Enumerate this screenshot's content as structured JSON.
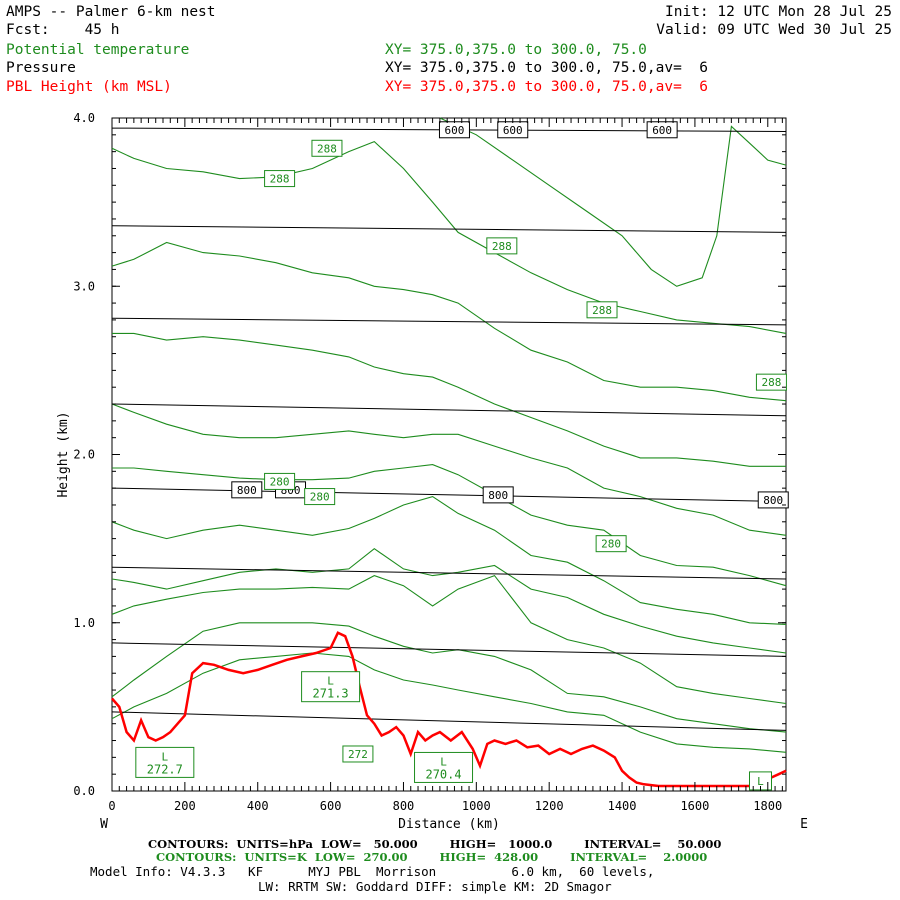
{
  "header": {
    "title": "AMPS -- Palmer 6-km nest",
    "fcst": "Fcst:    45 h",
    "init": "Init: 12 UTC Mon 28 Jul 25",
    "valid": "Valid: 09 UTC Wed 30 Jul 25",
    "fields": [
      {
        "name": "Potential temperature",
        "xy": "XY= 375.0,375.0 to 300.0, 75.0",
        "color": "#1e8c1e"
      },
      {
        "name": "Pressure",
        "xy": "XY= 375.0,375.0 to 300.0, 75.0,av=  6",
        "color": "#000000"
      },
      {
        "name": "PBL Height (km MSL)",
        "xy": "XY= 375.0,375.0 to 300.0, 75.0,av=  6",
        "color": "#ff0000"
      }
    ]
  },
  "footer": {
    "pressure_contours": "CONTOURS:  UNITS=hPa  LOW=   50.000        HIGH=   1000.0        INTERVAL=    50.000",
    "theta_contours": "CONTOURS:  UNITS=K  LOW=  270.00        HIGH=  428.00        INTERVAL=    2.0000",
    "model_info": "Model Info: V4.3.3   KF      MYJ PBL  Morrison          6.0 km,  60 levels,",
    "model_info2": "LW: RRTM SW: Goddard DIFF: simple KM: 2D Smagor"
  },
  "chart_data": {
    "type": "line",
    "xlabel": "Distance (km)",
    "ylabel": "Height (km)",
    "xlim": [
      0,
      1850
    ],
    "ylim": [
      0,
      4.0
    ],
    "x_ticks": [
      0,
      200,
      400,
      600,
      800,
      1000,
      1200,
      1400,
      1600,
      1800
    ],
    "y_ticks": [
      0.0,
      1.0,
      2.0,
      3.0,
      4.0
    ],
    "y_tick_labels": [
      "0.0",
      "1.0",
      "2.0",
      "3.0",
      "4.0"
    ],
    "left_end_label": "W",
    "right_end_label": "E",
    "pressure_isobars": [
      {
        "level": "950",
        "x": [
          0,
          1850
        ],
        "y": [
          0.47,
          0.36
        ]
      },
      {
        "level": "900",
        "x": [
          0,
          1850
        ],
        "y": [
          0.88,
          0.8
        ]
      },
      {
        "level": "850",
        "x": [
          0,
          1850
        ],
        "y": [
          1.33,
          1.26
        ]
      },
      {
        "level": "800",
        "x": [
          0,
          1850
        ],
        "y": [
          1.8,
          1.72
        ]
      },
      {
        "level": "750",
        "x": [
          0,
          1850
        ],
        "y": [
          2.3,
          2.23
        ]
      },
      {
        "level": "700",
        "x": [
          0,
          1850
        ],
        "y": [
          2.81,
          2.77
        ]
      },
      {
        "level": "650",
        "x": [
          0,
          1850
        ],
        "y": [
          3.36,
          3.32
        ]
      },
      {
        "level": "600",
        "x": [
          0,
          1850
        ],
        "y": [
          3.94,
          3.92
        ]
      }
    ],
    "pressure_labels": [
      {
        "text": "600",
        "x": 940,
        "y": 3.93
      },
      {
        "text": "600",
        "x": 1100,
        "y": 3.93
      },
      {
        "text": "600",
        "x": 1510,
        "y": 3.93
      },
      {
        "text": "800",
        "x": 370,
        "y": 1.79
      },
      {
        "text": "800",
        "x": 490,
        "y": 1.79
      },
      {
        "text": "800",
        "x": 1060,
        "y": 1.76
      },
      {
        "text": "800",
        "x": 1815,
        "y": 1.73
      }
    ],
    "theta_isentropes": [
      {
        "x": [
          0,
          60,
          150,
          250,
          350,
          450,
          550,
          650,
          720,
          800,
          880,
          950,
          1050,
          1150,
          1250,
          1350,
          1450,
          1550,
          1650,
          1750,
          1850
        ],
        "y": [
          0.43,
          0.5,
          0.58,
          0.7,
          0.78,
          0.8,
          0.82,
          0.8,
          0.72,
          0.66,
          0.63,
          0.6,
          0.56,
          0.52,
          0.47,
          0.45,
          0.35,
          0.28,
          0.26,
          0.25,
          0.23
        ]
      },
      {
        "x": [
          0,
          60,
          150,
          250,
          350,
          450,
          550,
          650,
          720,
          800,
          880,
          950,
          1050,
          1150,
          1250,
          1350,
          1450,
          1550,
          1650,
          1750,
          1850
        ],
        "y": [
          0.56,
          0.66,
          0.8,
          0.95,
          1.0,
          1.0,
          1.0,
          0.98,
          0.92,
          0.86,
          0.82,
          0.84,
          0.8,
          0.72,
          0.58,
          0.56,
          0.5,
          0.43,
          0.4,
          0.37,
          0.35
        ]
      },
      {
        "x": [
          0,
          60,
          150,
          250,
          350,
          450,
          550,
          650,
          720,
          800,
          880,
          950,
          1050,
          1150,
          1250,
          1350,
          1450,
          1550,
          1650,
          1750,
          1850
        ],
        "y": [
          1.05,
          1.1,
          1.14,
          1.18,
          1.2,
          1.2,
          1.21,
          1.2,
          1.28,
          1.22,
          1.1,
          1.2,
          1.28,
          1.0,
          0.9,
          0.85,
          0.76,
          0.62,
          0.58,
          0.55,
          0.52
        ]
      },
      {
        "x": [
          0,
          60,
          150,
          250,
          350,
          450,
          550,
          650,
          720,
          800,
          880,
          950,
          1050,
          1150,
          1250,
          1350,
          1450,
          1550,
          1650,
          1750,
          1850
        ],
        "y": [
          1.26,
          1.24,
          1.2,
          1.25,
          1.3,
          1.32,
          1.3,
          1.32,
          1.44,
          1.32,
          1.28,
          1.3,
          1.34,
          1.2,
          1.15,
          1.05,
          0.98,
          0.92,
          0.88,
          0.85,
          0.82
        ]
      },
      {
        "x": [
          0,
          60,
          150,
          250,
          350,
          450,
          550,
          650,
          720,
          800,
          880,
          950,
          1050,
          1150,
          1250,
          1350,
          1450,
          1550,
          1650,
          1750,
          1850
        ],
        "y": [
          1.6,
          1.55,
          1.5,
          1.55,
          1.58,
          1.55,
          1.52,
          1.56,
          1.62,
          1.7,
          1.75,
          1.65,
          1.55,
          1.4,
          1.36,
          1.25,
          1.12,
          1.08,
          1.05,
          1.0,
          0.99
        ]
      },
      {
        "x": [
          0,
          60,
          150,
          250,
          350,
          450,
          550,
          650,
          720,
          800,
          880,
          950,
          1050,
          1150,
          1250,
          1350,
          1450,
          1550,
          1650,
          1750,
          1850
        ],
        "y": [
          1.92,
          1.92,
          1.9,
          1.88,
          1.86,
          1.85,
          1.85,
          1.86,
          1.9,
          1.92,
          1.94,
          1.88,
          1.76,
          1.64,
          1.58,
          1.55,
          1.4,
          1.34,
          1.33,
          1.28,
          1.22
        ]
      },
      {
        "x": [
          0,
          60,
          150,
          250,
          350,
          450,
          550,
          650,
          720,
          800,
          880,
          950,
          1050,
          1150,
          1250,
          1350,
          1450,
          1550,
          1650,
          1750,
          1850
        ],
        "y": [
          2.3,
          2.25,
          2.18,
          2.12,
          2.1,
          2.1,
          2.12,
          2.14,
          2.12,
          2.1,
          2.12,
          2.12,
          2.05,
          1.98,
          1.92,
          1.8,
          1.75,
          1.68,
          1.64,
          1.55,
          1.52
        ]
      },
      {
        "x": [
          0,
          60,
          150,
          250,
          350,
          450,
          550,
          650,
          720,
          800,
          880,
          950,
          1050,
          1150,
          1250,
          1350,
          1450,
          1550,
          1650,
          1750,
          1850
        ],
        "y": [
          2.72,
          2.72,
          2.68,
          2.7,
          2.68,
          2.65,
          2.62,
          2.58,
          2.52,
          2.48,
          2.46,
          2.4,
          2.3,
          2.22,
          2.14,
          2.05,
          1.98,
          1.98,
          1.96,
          1.93,
          1.93
        ]
      },
      {
        "x": [
          0,
          60,
          150,
          250,
          350,
          450,
          550,
          650,
          720,
          800,
          880,
          950,
          1050,
          1150,
          1250,
          1350,
          1450,
          1550,
          1650,
          1750,
          1850
        ],
        "y": [
          3.12,
          3.16,
          3.26,
          3.2,
          3.18,
          3.14,
          3.08,
          3.05,
          3.0,
          2.98,
          2.95,
          2.9,
          2.75,
          2.62,
          2.55,
          2.44,
          2.4,
          2.4,
          2.38,
          2.34,
          2.32
        ]
      },
      {
        "x": [
          0,
          60,
          150,
          250,
          350,
          450,
          550,
          650,
          720,
          800,
          880,
          950,
          1050,
          1150,
          1250,
          1350,
          1450,
          1550,
          1650,
          1750,
          1850
        ],
        "y": [
          3.82,
          3.76,
          3.7,
          3.68,
          3.64,
          3.65,
          3.7,
          3.8,
          3.86,
          3.7,
          3.5,
          3.32,
          3.2,
          3.08,
          2.98,
          2.9,
          2.85,
          2.8,
          2.78,
          2.76,
          2.72
        ]
      },
      {
        "x": [
          900,
          1000,
          1100,
          1200,
          1300,
          1400,
          1480,
          1550,
          1620,
          1660,
          1700,
          1750,
          1800,
          1850
        ],
        "y": [
          4.0,
          3.9,
          3.75,
          3.6,
          3.45,
          3.3,
          3.1,
          3.0,
          3.05,
          3.3,
          3.95,
          3.85,
          3.75,
          3.72
        ]
      }
    ],
    "theta_labels": [
      {
        "text": "288",
        "x": 590,
        "y": 3.82
      },
      {
        "text": "288",
        "x": 460,
        "y": 3.64
      },
      {
        "text": "288",
        "x": 1070,
        "y": 3.24
      },
      {
        "text": "288",
        "x": 1345,
        "y": 2.86
      },
      {
        "text": "288",
        "x": 1810,
        "y": 2.43
      },
      {
        "text": "280",
        "x": 460,
        "y": 1.84
      },
      {
        "text": "280",
        "x": 570,
        "y": 1.75
      },
      {
        "text": "280",
        "x": 1370,
        "y": 1.47
      },
      {
        "text": "272",
        "x": 675,
        "y": 0.22
      }
    ],
    "cold_pools": [
      {
        "label": "L",
        "value": "271.3",
        "x": 600,
        "y": 0.62
      },
      {
        "label": "L",
        "value": "272.7",
        "x": 145,
        "y": 0.17
      },
      {
        "label": "L",
        "value": "270.4",
        "x": 910,
        "y": 0.14
      },
      {
        "label": "L",
        "value": "",
        "x": 1780,
        "y": 0.06
      }
    ],
    "pbl_height": {
      "x": [
        0,
        20,
        40,
        60,
        80,
        100,
        120,
        140,
        160,
        180,
        200,
        220,
        250,
        280,
        320,
        360,
        400,
        440,
        480,
        520,
        560,
        600,
        620,
        640,
        660,
        680,
        700,
        720,
        740,
        760,
        780,
        800,
        820,
        840,
        860,
        880,
        900,
        930,
        960,
        990,
        1010,
        1030,
        1050,
        1080,
        1110,
        1140,
        1170,
        1200,
        1230,
        1260,
        1290,
        1320,
        1350,
        1380,
        1400,
        1420,
        1440,
        1460,
        1500,
        1550,
        1600,
        1650,
        1700,
        1750,
        1780,
        1810,
        1830,
        1850
      ],
      "y": [
        0.55,
        0.5,
        0.35,
        0.3,
        0.42,
        0.32,
        0.3,
        0.32,
        0.35,
        0.4,
        0.45,
        0.7,
        0.76,
        0.75,
        0.72,
        0.7,
        0.72,
        0.75,
        0.78,
        0.8,
        0.82,
        0.85,
        0.94,
        0.92,
        0.8,
        0.62,
        0.45,
        0.4,
        0.33,
        0.35,
        0.38,
        0.33,
        0.22,
        0.35,
        0.3,
        0.33,
        0.35,
        0.3,
        0.35,
        0.25,
        0.15,
        0.28,
        0.3,
        0.28,
        0.3,
        0.26,
        0.27,
        0.22,
        0.25,
        0.22,
        0.25,
        0.27,
        0.24,
        0.2,
        0.12,
        0.08,
        0.05,
        0.04,
        0.03,
        0.03,
        0.03,
        0.03,
        0.03,
        0.03,
        0.05,
        0.08,
        0.1,
        0.12
      ]
    },
    "colors": {
      "theta": "#1e8c1e",
      "pressure": "#000000",
      "pbl": "#ff0000"
    },
    "grid": false
  }
}
